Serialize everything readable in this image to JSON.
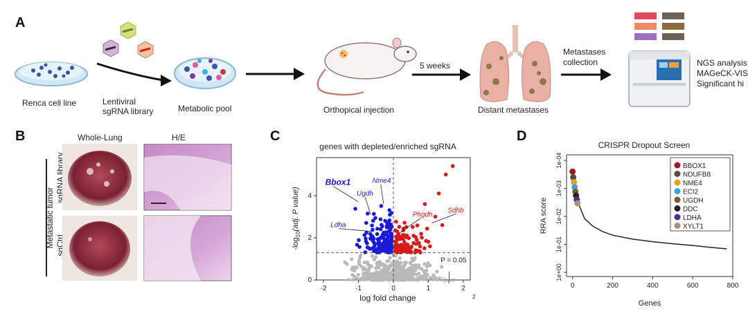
{
  "panelA": {
    "letter": "A",
    "renca": "Renca cell line",
    "lenti_line1": "Lentiviral",
    "lenti_line2": "sgRNA library",
    "metabolic": "Metabolic pool",
    "ortho": "Orthopical injection",
    "weeks": "5 weeks",
    "distant": "Distant metastases",
    "meta_line1": "Metastases",
    "meta_line2": "collection",
    "ngs_line1": "NGS analysis",
    "ngs_line2": "MAGeCK-VIS",
    "ngs_line3": "Significant hi",
    "swatch_colors": [
      "#e04a5a",
      "#6d6257",
      "#f08a6a",
      "#8e6a3a",
      "#9d6fc2",
      "#6d6257"
    ]
  },
  "panelB": {
    "letter": "B",
    "col1": "Whole-Lung",
    "col2": "H/E",
    "row1": "sgRNA library",
    "row2": "sgCtrl",
    "side": "Metastatic tumor"
  },
  "panelC": {
    "letter": "C",
    "title": "genes with depleted/enriched sgRNA",
    "xlabel": "log fold change",
    "x_subscript": "2",
    "ylabel_pre": "-log",
    "ylabel_sub": "10",
    "ylabel_post": "(adj. P value)",
    "p_label": "P = 0.05",
    "genes_blue": [
      "Bbox1",
      "Ugdh",
      "Nme4",
      "Ldha"
    ],
    "genes_red": [
      "Phgdh",
      "Sdhb"
    ],
    "gene_gray": "Tpmt",
    "xticks": [
      "-2",
      "-1",
      "0",
      "1",
      "2"
    ],
    "yticks": [
      "0",
      "2",
      "4"
    ]
  },
  "panelD": {
    "letter": "D",
    "title": "CRISPR Dropout Screen",
    "xlabel": "Genes",
    "ylabel": "RRA score",
    "xticks": [
      "0",
      "200",
      "400",
      "600",
      "800"
    ],
    "yticks": [
      "1e-04",
      "1e-03",
      "1e-02",
      "1e-01",
      "1e+00"
    ]
  },
  "chart_data": [
    {
      "type": "scatter",
      "title": "genes with depleted/enriched sgRNA",
      "xlabel": "log fold change",
      "ylabel": "-log10(adj. P value)",
      "xlim": [
        -2.2,
        2.2
      ],
      "ylim": [
        0,
        5.8
      ],
      "threshold_y": 1.3,
      "labeled_points": [
        {
          "gene": "Bbox1",
          "x": -1.0,
          "y": 3.7
        },
        {
          "gene": "Ugdh",
          "x": -0.65,
          "y": 3.1
        },
        {
          "gene": "Nme4",
          "x": -0.28,
          "y": 3.6
        },
        {
          "gene": "Ldha",
          "x": -0.6,
          "y": 2.3
        },
        {
          "gene": "Phgdh",
          "x": 0.15,
          "y": 2.2
        },
        {
          "gene": "Sdhb",
          "x": 1.1,
          "y": 2.7
        },
        {
          "gene": "Tpmt",
          "x": 1.6,
          "y": 0.4
        }
      ]
    },
    {
      "type": "line",
      "title": "CRISPR Dropout Screen",
      "xlabel": "Genes",
      "ylabel": "RRA score",
      "xlim": [
        -30,
        800
      ],
      "y_scale": "log",
      "x": [
        1,
        10,
        30,
        60,
        100,
        150,
        200,
        300,
        400,
        500,
        600,
        700,
        770
      ],
      "y": [
        0.00025,
        0.0006,
        0.0035,
        0.012,
        0.022,
        0.035,
        0.047,
        0.065,
        0.08,
        0.095,
        0.11,
        0.13,
        0.145
      ],
      "highlighted_genes": [
        {
          "name": "BBOX1",
          "color": "#a0162a"
        },
        {
          "name": "NDUFB8",
          "color": "#5a4a40"
        },
        {
          "name": "NME4",
          "color": "#e0a020"
        },
        {
          "name": "ECI2",
          "color": "#35a8d8"
        },
        {
          "name": "UGDH",
          "color": "#7a5a2a"
        },
        {
          "name": "DDC",
          "color": "#222222"
        },
        {
          "name": "LDHA",
          "color": "#5a2a8a"
        },
        {
          "name": "XYLT1",
          "color": "#a8907a"
        }
      ]
    }
  ]
}
